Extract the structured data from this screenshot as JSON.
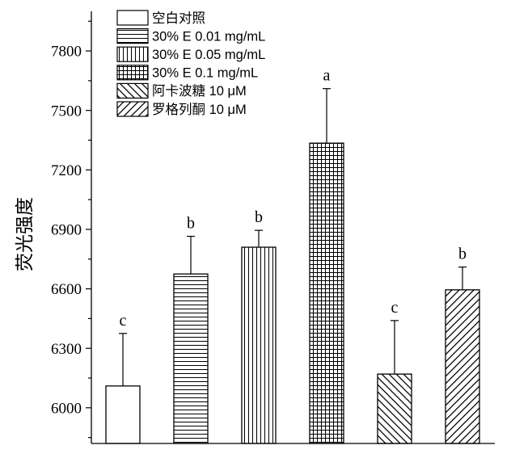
{
  "chart_data": {
    "type": "bar",
    "categories": [
      "空白对照",
      "30% E 0.01 mg/mL",
      "30% E 0.05 mg/mL",
      "30% E 0.1 mg/mL",
      "阿卡波糖 10 μM",
      "罗格列酮 10 μM"
    ],
    "values": [
      6110,
      6675,
      6810,
      7335,
      6170,
      6595
    ],
    "errors": [
      265,
      190,
      85,
      275,
      270,
      115
    ],
    "significance_letters": [
      "c",
      "b",
      "b",
      "a",
      "c",
      "b"
    ],
    "hatch": [
      "none",
      "horizontal",
      "vertical",
      "grid",
      "backslash",
      "slash"
    ],
    "ylabel": "荧光强度",
    "yticks": [
      6000,
      6300,
      6600,
      6900,
      7200,
      7500,
      7800
    ],
    "ylim": [
      5820,
      8000
    ],
    "grid": false,
    "legend_position": "top-left",
    "colors": {
      "bar_edge": "#000000",
      "bar_fill": "#ffffff"
    }
  }
}
